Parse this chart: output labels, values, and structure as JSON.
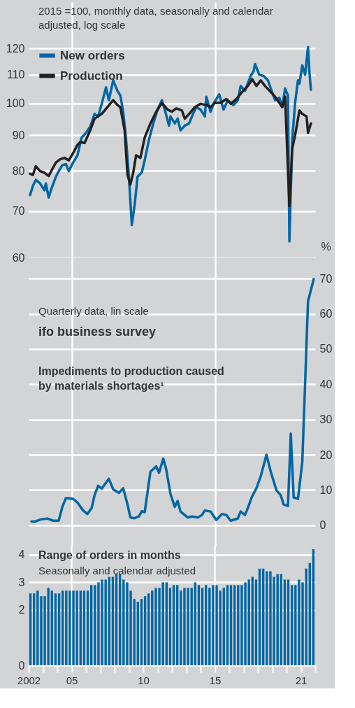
{
  "chart_data": [
    {
      "type": "line",
      "subtitle": "2015 =100, monthly data, seasonally and calendar adjusted, log scale",
      "log": true,
      "xlim": [
        2002,
        2022
      ],
      "ylim": [
        60,
        140
      ],
      "yticks": [
        60,
        70,
        80,
        90,
        100,
        110,
        120
      ],
      "tick_labels": "y",
      "grid": true,
      "legend": "top left",
      "xticks": [
        2005,
        2015
      ],
      "series": [
        {
          "name": "New orders",
          "color": "#0066a4",
          "x": [
            2002.1,
            2002.3,
            2002.5,
            2002.8,
            2003.1,
            2003.2,
            2003.4,
            2003.6,
            2003.9,
            2004.1,
            2004.35,
            2004.6,
            2004.8,
            2005.1,
            2005.4,
            2005.7,
            2006.0,
            2006.3,
            2006.6,
            2006.85,
            2007.1,
            2007.4,
            2007.6,
            2007.9,
            2008.2,
            2008.4,
            2008.6,
            2008.8,
            2009.0,
            2009.2,
            2009.4,
            2009.6,
            2009.9,
            2010.1,
            2010.4,
            2010.7,
            2011.0,
            2011.3,
            2011.5,
            2011.8,
            2011.9,
            2012.2,
            2012.4,
            2012.6,
            2012.9,
            2013.2,
            2013.5,
            2013.7,
            2014.0,
            2014.3,
            2014.4,
            2014.7,
            2014.9,
            2015.3,
            2015.6,
            2015.9,
            2016.3,
            2016.6,
            2016.8,
            2017.1,
            2017.5,
            2017.7,
            2017.8,
            2018.1,
            2018.4,
            2018.7,
            2018.9,
            2019.2,
            2019.5,
            2019.7,
            2019.9,
            2020.1,
            2020.2,
            2020.4,
            2020.6,
            2020.8,
            2020.9,
            2021.1,
            2021.3,
            2021.5,
            2021.6,
            2021.7
          ],
          "values": [
            73.8,
            76.1,
            77.6,
            76.7,
            75.0,
            76.7,
            73.2,
            75.5,
            78.4,
            79.9,
            81.5,
            81.8,
            79.9,
            82.2,
            84.1,
            89.3,
            90.7,
            92.6,
            96.6,
            95.8,
            99.9,
            105.5,
            101.1,
            108.0,
            104.3,
            102.7,
            97.3,
            88.7,
            78.4,
            66.8,
            71.5,
            78.4,
            79.6,
            82.8,
            88.7,
            93.6,
            98.0,
            101.1,
            98.0,
            92.9,
            95.8,
            93.6,
            95.1,
            91.5,
            92.9,
            93.6,
            96.9,
            98.8,
            98.0,
            95.8,
            102.3,
            97.3,
            99.9,
            103.1,
            98.0,
            101.1,
            99.5,
            101.1,
            106.0,
            104.3,
            109.6,
            111.3,
            114.0,
            110.0,
            109.6,
            108.0,
            105.1,
            101.1,
            101.9,
            98.8,
            105.1,
            102.7,
            63.3,
            88.7,
            100.2,
            108.0,
            106.8,
            113.5,
            110.0,
            120.6,
            110.9,
            104.7
          ]
        },
        {
          "name": "Production",
          "color": "#231f20",
          "x": [
            2002.1,
            2002.3,
            2002.5,
            2002.8,
            2003.1,
            2003.4,
            2003.7,
            2003.9,
            2004.2,
            2004.5,
            2004.8,
            2005.1,
            2005.4,
            2005.6,
            2005.9,
            2006.3,
            2006.6,
            2007.1,
            2007.5,
            2007.9,
            2008.2,
            2008.4,
            2008.7,
            2008.9,
            2009.1,
            2009.3,
            2009.5,
            2009.8,
            2010.1,
            2010.5,
            2010.9,
            2011.3,
            2011.7,
            2012.0,
            2012.3,
            2012.7,
            2012.9,
            2013.2,
            2013.6,
            2014.0,
            2014.4,
            2014.7,
            2015.0,
            2015.4,
            2015.8,
            2016.1,
            2016.5,
            2016.9,
            2017.3,
            2017.6,
            2017.9,
            2018.2,
            2018.5,
            2018.9,
            2019.2,
            2019.5,
            2019.7,
            2019.9,
            2020.2,
            2020.4,
            2020.6,
            2020.9,
            2021.1,
            2021.4,
            2021.5,
            2021.7
          ],
          "values": [
            79.2,
            78.9,
            81.2,
            79.9,
            79.5,
            78.6,
            80.8,
            82.2,
            83.1,
            83.5,
            82.8,
            84.8,
            87.1,
            88.0,
            87.7,
            91.5,
            95.1,
            96.6,
            98.8,
            101.1,
            99.5,
            98.8,
            91.5,
            78.9,
            76.4,
            79.5,
            84.2,
            83.5,
            89.3,
            93.6,
            97.3,
            100.2,
            98.0,
            97.3,
            98.4,
            97.7,
            95.1,
            96.6,
            98.8,
            99.9,
            99.5,
            98.8,
            100.2,
            100.2,
            101.5,
            99.9,
            101.5,
            103.9,
            106.0,
            108.4,
            106.0,
            108.0,
            106.0,
            103.9,
            102.3,
            100.2,
            98.8,
            102.3,
            71.2,
            86.1,
            90.0,
            97.7,
            96.6,
            95.8,
            90.7,
            93.6
          ]
        }
      ]
    },
    {
      "type": "line",
      "title": "ifo business survey",
      "subtitle": "Quarterly data, lin scale",
      "ylabel": "%",
      "annotations": [
        "Impediments to production caused by materials shortages¹"
      ],
      "xlim": [
        2002,
        2022
      ],
      "ylim": [
        -6,
        76
      ],
      "yticks": [
        0,
        10,
        20,
        30,
        40,
        50,
        60,
        70
      ],
      "tick_labels": "y",
      "grid": true,
      "xticks": [
        2005,
        2015
      ],
      "series": [
        {
          "color": "#0066a4",
          "x": [
            2002.2,
            2002.4,
            2002.9,
            2003.3,
            2003.7,
            2004.1,
            2004.35,
            2004.6,
            2005.1,
            2005.4,
            2005.8,
            2006.1,
            2006.4,
            2006.6,
            2006.85,
            2007.1,
            2007.6,
            2007.9,
            2008.3,
            2008.6,
            2008.9,
            2009.1,
            2009.4,
            2009.7,
            2009.9,
            2010.1,
            2010.5,
            2010.9,
            2011.1,
            2011.4,
            2011.6,
            2011.9,
            2012.2,
            2012.4,
            2012.6,
            2013.1,
            2013.4,
            2013.8,
            2014.1,
            2014.3,
            2014.7,
            2015.1,
            2015.5,
            2015.8,
            2016.1,
            2016.6,
            2016.8,
            2017.1,
            2017.3,
            2017.6,
            2017.9,
            2018.2,
            2018.6,
            2018.9,
            2019.3,
            2019.6,
            2019.8,
            2020.1,
            2020.3,
            2020.5,
            2020.8,
            2021.1,
            2021.3,
            2021.5,
            2021.9
          ],
          "values": [
            1.1,
            1.0,
            1.7,
            1.9,
            1.3,
            1.3,
            5.2,
            7.7,
            7.5,
            6.5,
            4.2,
            3.2,
            4.9,
            8.5,
            11.2,
            10.4,
            13.2,
            10.2,
            9.2,
            10.5,
            5.9,
            2.2,
            2.0,
            2.5,
            4.0,
            3.7,
            15.2,
            16.7,
            14.9,
            18.9,
            15.9,
            8.9,
            5.2,
            6.9,
            3.9,
            2.2,
            2.5,
            2.2,
            2.9,
            4.2,
            3.9,
            1.5,
            3.2,
            2.9,
            1.3,
            1.9,
            3.9,
            2.9,
            4.9,
            8.2,
            10.5,
            13.9,
            20.0,
            15.2,
            9.9,
            8.5,
            5.9,
            5.5,
            26.0,
            7.9,
            7.5,
            17.9,
            40.5,
            63.5,
            69.9
          ]
        }
      ]
    },
    {
      "type": "bar",
      "title": "Range of orders in months",
      "subtitle": "Seasonally and calendar adjusted",
      "xlim": [
        2002,
        2022
      ],
      "ylim": [
        0,
        4.3
      ],
      "yticks": [
        0,
        2,
        3,
        4
      ],
      "grid": "y",
      "xticks": [
        2002,
        {
          "value": 2003,
          "label": null
        },
        {
          "value": 2004,
          "label": null
        },
        {
          "value": 2005,
          "label": "05"
        },
        {
          "value": 2006,
          "label": null
        },
        {
          "value": 2007,
          "label": null
        },
        {
          "value": 2008,
          "label": null
        },
        {
          "value": 2009,
          "label": null
        },
        {
          "value": 2010,
          "label": "10"
        },
        {
          "value": 2011,
          "label": null
        },
        {
          "value": 2012,
          "label": null
        },
        {
          "value": 2013,
          "label": null
        },
        {
          "value": 2014,
          "label": null
        },
        {
          "value": 2015,
          "label": "15"
        },
        {
          "value": 2016,
          "label": null
        },
        {
          "value": 2017,
          "label": null
        },
        {
          "value": 2018,
          "label": null
        },
        {
          "value": 2019,
          "label": null
        },
        {
          "value": 2020,
          "label": null
        },
        {
          "value": 2021,
          "label": "21"
        },
        {
          "value": 2022,
          "label": null
        }
      ],
      "ref_lines": [
        {
          "axis": "x",
          "value": 2005,
          "color": "#ffffff"
        },
        {
          "axis": "x",
          "value": 2015,
          "color": "#ffffff"
        }
      ],
      "series": [
        {
          "color": "#0066a4",
          "x": [
            2002.125,
            2002.375,
            2002.625,
            2002.875,
            2003.125,
            2003.375,
            2003.625,
            2003.875,
            2004.125,
            2004.375,
            2004.625,
            2004.875,
            2005.125,
            2005.375,
            2005.625,
            2005.875,
            2006.125,
            2006.375,
            2006.625,
            2006.875,
            2007.125,
            2007.375,
            2007.625,
            2007.875,
            2008.125,
            2008.375,
            2008.625,
            2008.875,
            2009.125,
            2009.375,
            2009.625,
            2009.875,
            2010.125,
            2010.375,
            2010.625,
            2010.875,
            2011.125,
            2011.375,
            2011.625,
            2011.875,
            2012.125,
            2012.375,
            2012.625,
            2012.875,
            2013.125,
            2013.375,
            2013.625,
            2013.875,
            2014.125,
            2014.375,
            2014.625,
            2014.875,
            2015.125,
            2015.375,
            2015.625,
            2015.875,
            2016.125,
            2016.375,
            2016.625,
            2016.875,
            2017.125,
            2017.375,
            2017.625,
            2017.875,
            2018.125,
            2018.375,
            2018.625,
            2018.875,
            2019.125,
            2019.375,
            2019.625,
            2019.875,
            2020.125,
            2020.375,
            2020.625,
            2020.875,
            2021.125,
            2021.375,
            2021.625,
            2021.875
          ],
          "values": [
            2.6,
            2.6,
            2.7,
            2.5,
            2.5,
            2.8,
            2.7,
            2.6,
            2.6,
            2.7,
            2.7,
            2.7,
            2.7,
            2.7,
            2.7,
            2.7,
            2.7,
            2.9,
            2.9,
            3.0,
            3.1,
            3.1,
            3.2,
            3.2,
            3.3,
            3.3,
            3.1,
            3.0,
            2.7,
            2.4,
            2.3,
            2.4,
            2.5,
            2.6,
            2.7,
            2.8,
            2.8,
            3.0,
            3.0,
            2.8,
            2.9,
            2.9,
            2.7,
            2.8,
            2.8,
            2.8,
            3.0,
            2.9,
            2.8,
            2.9,
            2.8,
            2.9,
            2.9,
            2.7,
            2.8,
            2.9,
            2.9,
            2.9,
            2.9,
            2.9,
            3.0,
            3.1,
            3.2,
            3.1,
            3.5,
            3.5,
            3.4,
            3.4,
            3.2,
            3.3,
            3.3,
            3.1,
            3.1,
            2.9,
            2.9,
            3.1,
            3.0,
            3.5,
            3.7,
            4.2
          ]
        }
      ]
    }
  ]
}
